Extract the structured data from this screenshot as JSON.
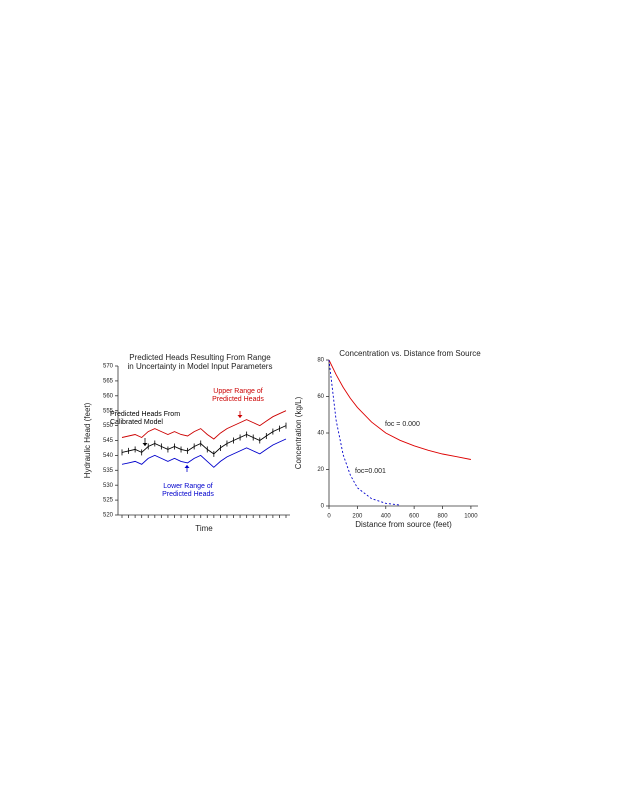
{
  "chart_data": [
    {
      "type": "line",
      "title": [
        "Predicted Heads Resulting From Range",
        "in Uncertainty in Model Input Parameters"
      ],
      "xlabel": "Time",
      "ylabel": "Hydraulic Head (feet)",
      "categories": [
        null,
        null,
        null,
        null,
        null,
        null,
        null,
        null,
        null,
        null,
        null,
        null,
        null,
        null,
        null,
        null,
        null,
        null,
        null,
        null,
        null,
        null,
        null,
        null,
        null,
        null
      ],
      "series": [
        {
          "name": "Upper Range of Predicted Heads",
          "color": "#cc0000",
          "markers": false,
          "values": [
            546,
            546.5,
            547,
            546,
            548,
            549,
            548,
            547,
            548,
            547,
            546.5,
            548,
            549,
            547,
            545.5,
            547.5,
            549,
            550,
            551,
            552,
            551,
            550,
            551.5,
            553,
            554,
            555
          ]
        },
        {
          "name": "Predicted Heads From Calibrated Model",
          "color": "#000000",
          "markers": true,
          "values": [
            541,
            541.5,
            542,
            541,
            543,
            544,
            543,
            542,
            543,
            542,
            541.5,
            543,
            544,
            542,
            540.5,
            542.5,
            544,
            545,
            546,
            547,
            546,
            545,
            546.5,
            548,
            549,
            550
          ]
        },
        {
          "name": "Lower Range of Predicted Heads",
          "color": "#0000cc",
          "markers": false,
          "values": [
            537,
            537.5,
            538,
            537,
            539,
            540,
            539,
            538,
            539,
            538,
            537.5,
            539,
            540,
            538,
            536,
            538,
            539.5,
            540.5,
            541.5,
            542.5,
            541.5,
            540.5,
            542,
            543.5,
            544.5,
            545.5
          ]
        }
      ],
      "annotations": [
        [
          "Upper Range of",
          "Predicted Heads"
        ],
        [
          "Predicted Heads From",
          "Calibrated Model"
        ],
        [
          "Lower Range of",
          "Predicted Heads"
        ]
      ],
      "ylim": [
        520,
        570
      ],
      "yticks": [
        520,
        525,
        530,
        535,
        540,
        545,
        550,
        555,
        560,
        565,
        570
      ]
    },
    {
      "type": "line",
      "title": [
        "Concentration vs. Distance from Source"
      ],
      "xlabel": "Distance from source (feet)",
      "ylabel": "Concentration (kg/L)",
      "x": [
        0,
        50,
        100,
        150,
        200,
        300,
        400,
        500,
        600,
        700,
        800,
        900,
        1000
      ],
      "series": [
        {
          "name": "foc = 0.000",
          "color": "#dd0000",
          "dashed": false,
          "values": [
            80,
            72,
            65,
            59,
            54,
            46,
            40,
            36,
            33,
            30.5,
            28.5,
            27,
            25.5
          ]
        },
        {
          "name": "foc=0.001",
          "color": "#0000cc",
          "dashed": true,
          "values": [
            80,
            47,
            28,
            17,
            10,
            4,
            1.5,
            0.5,
            null,
            null,
            null,
            null,
            null
          ]
        }
      ],
      "xlim": [
        0,
        1050
      ],
      "xticks": [
        0,
        200,
        400,
        600,
        800,
        1000
      ],
      "ylim": [
        0,
        80
      ],
      "yticks": [
        0,
        20,
        40,
        60,
        80
      ]
    }
  ]
}
